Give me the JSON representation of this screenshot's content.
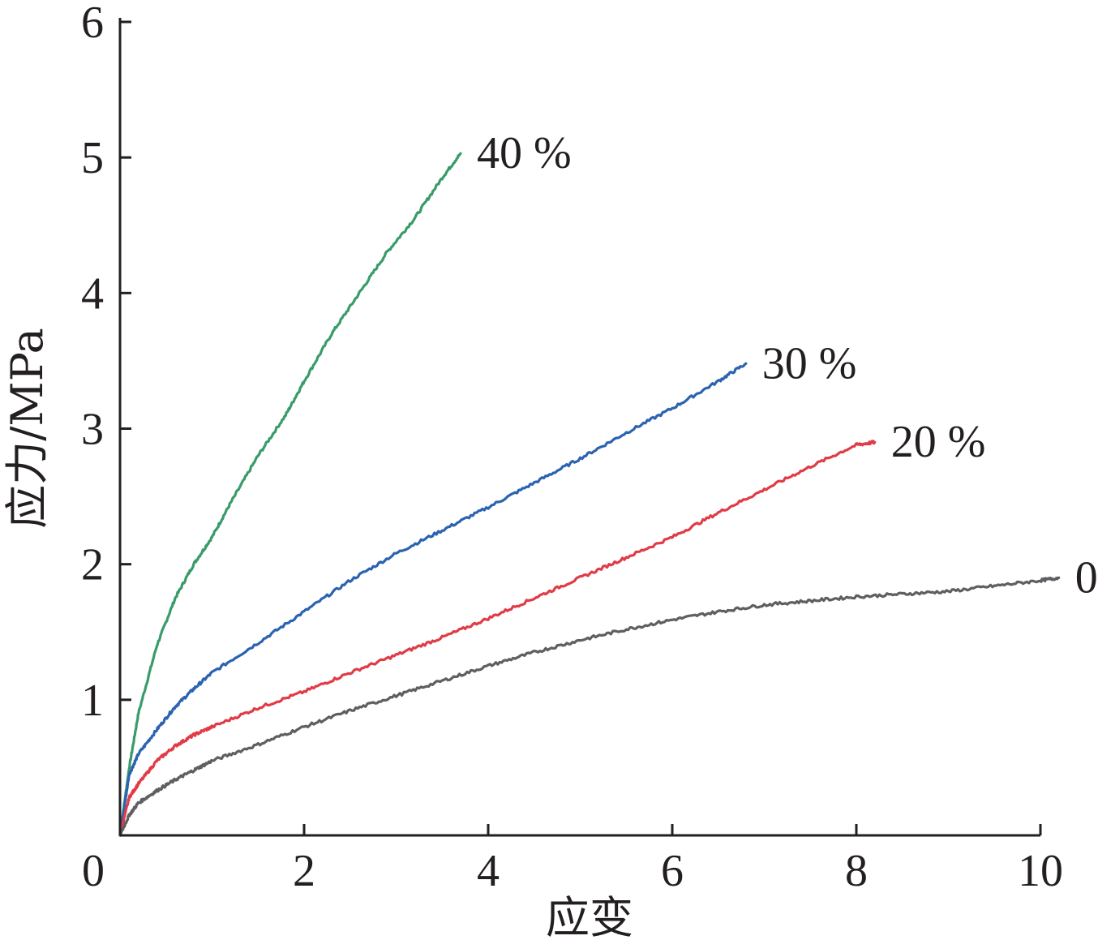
{
  "chart_data": {
    "type": "line",
    "title": "",
    "xlabel": "应变",
    "ylabel": "应力/MPa",
    "xlim": [
      0,
      10
    ],
    "ylim": [
      0,
      6
    ],
    "xticks": [
      "0",
      "2",
      "4",
      "6",
      "8",
      "10"
    ],
    "yticks": [
      "1",
      "2",
      "3",
      "4",
      "5",
      "6"
    ],
    "grid": false,
    "legend": "none",
    "series": [
      {
        "name": "40 %",
        "color": "#3a9b6a",
        "x": [
          0,
          0.1,
          0.2,
          0.4,
          0.6,
          0.8,
          1.0,
          1.2,
          1.5,
          1.8,
          2.0,
          2.3,
          2.6,
          2.9,
          3.2,
          3.5,
          3.7
        ],
        "y": [
          0,
          0.5,
          0.9,
          1.4,
          1.75,
          2.0,
          2.2,
          2.45,
          2.8,
          3.1,
          3.35,
          3.7,
          4.0,
          4.3,
          4.55,
          4.85,
          5.03
        ]
      },
      {
        "name": "30 %",
        "color": "#2b63b0",
        "x": [
          0,
          0.1,
          0.2,
          0.4,
          0.6,
          0.8,
          1.0,
          1.5,
          2.0,
          2.5,
          3.0,
          3.5,
          4.0,
          4.5,
          5.0,
          5.5,
          6.0,
          6.5,
          6.8
        ],
        "y": [
          0,
          0.45,
          0.6,
          0.78,
          0.95,
          1.08,
          1.2,
          1.42,
          1.65,
          1.88,
          2.08,
          2.25,
          2.42,
          2.6,
          2.78,
          2.97,
          3.15,
          3.35,
          3.48
        ]
      },
      {
        "name": "20 %",
        "color": "#e03c47",
        "x": [
          0,
          0.1,
          0.2,
          0.4,
          0.6,
          0.8,
          1.0,
          1.5,
          2.0,
          2.5,
          3.0,
          3.5,
          4.0,
          4.5,
          5.0,
          5.5,
          6.0,
          6.5,
          7.0,
          7.5,
          8.0,
          8.2
        ],
        "y": [
          0,
          0.28,
          0.38,
          0.55,
          0.66,
          0.74,
          0.8,
          0.94,
          1.06,
          1.2,
          1.33,
          1.46,
          1.6,
          1.75,
          1.9,
          2.05,
          2.2,
          2.38,
          2.55,
          2.72,
          2.88,
          2.9
        ]
      },
      {
        "name": "0",
        "color": "#5f5f63",
        "x": [
          0,
          0.1,
          0.2,
          0.4,
          0.6,
          0.8,
          1.0,
          1.5,
          2.0,
          2.5,
          3.0,
          3.5,
          4.0,
          4.5,
          5.0,
          5.5,
          6.0,
          6.5,
          7.0,
          7.5,
          8.0,
          8.5,
          9.0,
          9.5,
          10.0,
          10.2
        ],
        "y": [
          0,
          0.15,
          0.24,
          0.33,
          0.41,
          0.48,
          0.55,
          0.67,
          0.8,
          0.92,
          1.03,
          1.14,
          1.25,
          1.35,
          1.44,
          1.52,
          1.59,
          1.65,
          1.7,
          1.73,
          1.76,
          1.78,
          1.8,
          1.84,
          1.88,
          1.9
        ]
      }
    ]
  }
}
